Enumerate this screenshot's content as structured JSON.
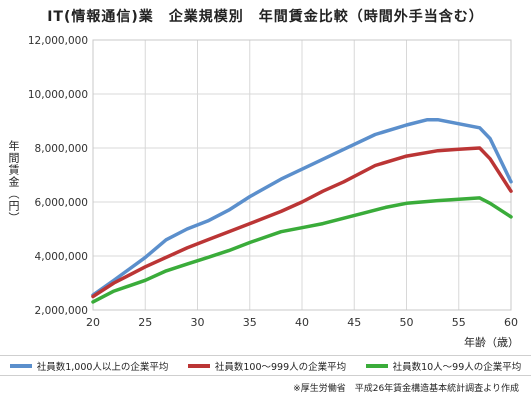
{
  "chart_data": {
    "type": "line",
    "title": "IT(情報通信)業　企業規模別　年間賃金比較（時間外手当含む）",
    "ylabel": "年間賃金（円）",
    "xlabel": "年齢（歳）",
    "xlim": [
      20,
      60
    ],
    "ylim": [
      2000000,
      12000000
    ],
    "xticks": [
      "20",
      "25",
      "30",
      "35",
      "40",
      "45",
      "50",
      "55",
      "60"
    ],
    "yticks": [
      "2,000,000",
      "4,000,000",
      "6,000,000",
      "8,000,000",
      "10,000,000",
      "12,000,000"
    ],
    "grid": true,
    "legend_position": "bottom",
    "series": [
      {
        "name": "社員数1,000人以上の企業平均",
        "color": "#5b8fcc",
        "points": [
          [
            20,
            2550000
          ],
          [
            22,
            3100000
          ],
          [
            25,
            3950000
          ],
          [
            27,
            4600000
          ],
          [
            29,
            5000000
          ],
          [
            31,
            5300000
          ],
          [
            33,
            5700000
          ],
          [
            35,
            6200000
          ],
          [
            38,
            6850000
          ],
          [
            41,
            7400000
          ],
          [
            44,
            7950000
          ],
          [
            47,
            8500000
          ],
          [
            50,
            8850000
          ],
          [
            52,
            9050000
          ],
          [
            53,
            9050000
          ],
          [
            57,
            8750000
          ],
          [
            58,
            8350000
          ],
          [
            60,
            6750000
          ]
        ]
      },
      {
        "name": "社員数100〜999人の企業平均",
        "color": "#bb3535",
        "points": [
          [
            20,
            2500000
          ],
          [
            22,
            3000000
          ],
          [
            25,
            3600000
          ],
          [
            27,
            3950000
          ],
          [
            29,
            4300000
          ],
          [
            31,
            4600000
          ],
          [
            33,
            4900000
          ],
          [
            35,
            5200000
          ],
          [
            38,
            5650000
          ],
          [
            40,
            6000000
          ],
          [
            42,
            6400000
          ],
          [
            44,
            6750000
          ],
          [
            47,
            7350000
          ],
          [
            50,
            7700000
          ],
          [
            53,
            7900000
          ],
          [
            55,
            7950000
          ],
          [
            57,
            8000000
          ],
          [
            58,
            7600000
          ],
          [
            60,
            6400000
          ]
        ]
      },
      {
        "name": "社員数10人〜99人の企業平均",
        "color": "#3aac3a",
        "points": [
          [
            20,
            2300000
          ],
          [
            22,
            2700000
          ],
          [
            25,
            3100000
          ],
          [
            27,
            3450000
          ],
          [
            29,
            3700000
          ],
          [
            31,
            3950000
          ],
          [
            33,
            4200000
          ],
          [
            35,
            4500000
          ],
          [
            38,
            4900000
          ],
          [
            40,
            5050000
          ],
          [
            42,
            5200000
          ],
          [
            44,
            5400000
          ],
          [
            46,
            5600000
          ],
          [
            48,
            5800000
          ],
          [
            50,
            5950000
          ],
          [
            53,
            6050000
          ],
          [
            55,
            6100000
          ],
          [
            57,
            6150000
          ],
          [
            58,
            5950000
          ],
          [
            60,
            5450000
          ]
        ]
      }
    ]
  },
  "source_note": "※厚生労働省　平成26年賃金構造基本統計調査より作成"
}
